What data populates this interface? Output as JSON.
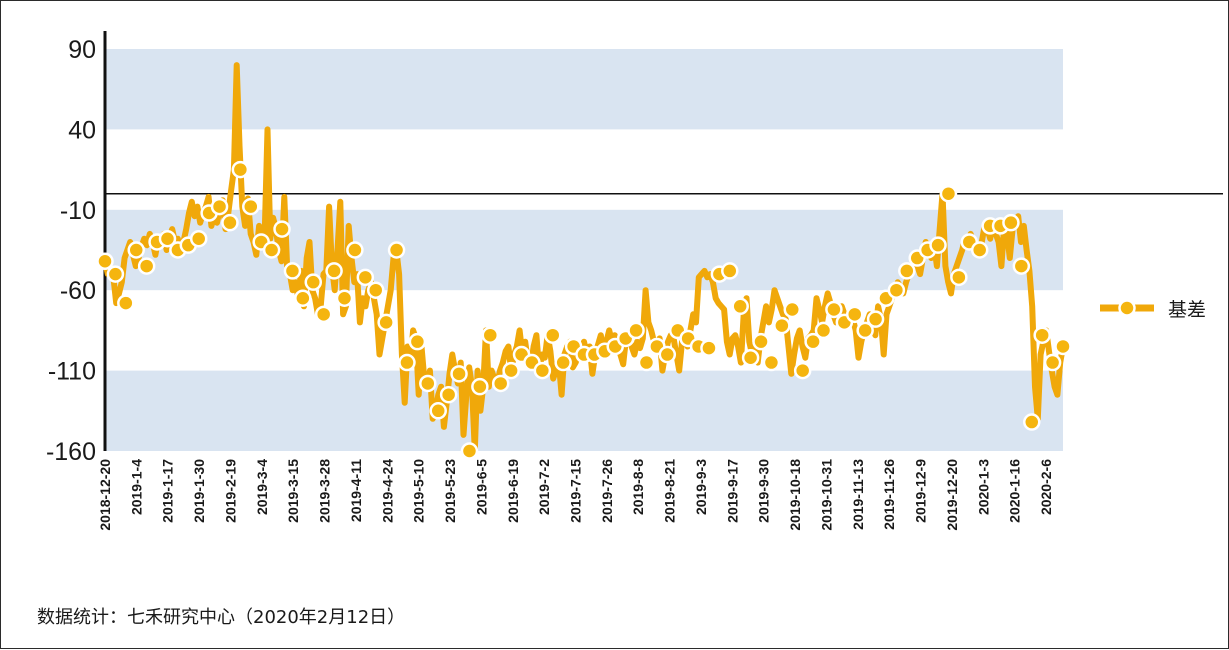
{
  "source_note": "数据统计：七禾研究中心（2020年2月12日）",
  "chart_data": {
    "type": "line",
    "title": "",
    "xlabel": "",
    "ylabel": "",
    "ylim": [
      -160,
      90
    ],
    "yticks": [
      90,
      40,
      -10,
      -60,
      -110,
      -160
    ],
    "y_tick_labels": [
      "90",
      "40",
      "-10",
      "-60",
      "-110",
      "-160"
    ],
    "reference_line": 0,
    "grid": "alternating horizontal bands",
    "legend_position": "right",
    "x_tick_labels": [
      "2018-12-20",
      "2019-1-4",
      "2019-1-17",
      "2019-1-30",
      "2019-2-19",
      "2019-3-4",
      "2019-3-15",
      "2019-3-28",
      "2019-4-11",
      "2019-4-24",
      "2019-5-10",
      "2019-5-23",
      "2019-6-5",
      "2019-6-19",
      "2019-7-2",
      "2019-7-15",
      "2019-7-26",
      "2019-8-8",
      "2019-8-21",
      "2019-9-3",
      "2019-9-17",
      "2019-9-30",
      "2019-10-18",
      "2019-10-31",
      "2019-11-13",
      "2019-11-26",
      "2019-12-9",
      "2019-12-20",
      "2020-1-3",
      "2020-1-16",
      "2020-2-6"
    ],
    "colors": {
      "series": "#f0a80a",
      "marker_fill": "#f5b50f",
      "marker_stroke": "#ffffff",
      "band": "#d9e4f1",
      "axis": "#111111"
    },
    "series": [
      {
        "name": "基差",
        "values": [
          -42,
          -50,
          -48,
          -52,
          -68,
          -62,
          -55,
          -40,
          -35,
          -30,
          -38,
          -45,
          -40,
          -33,
          -28,
          -32,
          -25,
          -30,
          -38,
          -28,
          -32,
          -25,
          -35,
          -27,
          -22,
          -30,
          -28,
          -35,
          -30,
          -22,
          -12,
          -5,
          -14,
          -8,
          -18,
          -12,
          -8,
          -2,
          -20,
          -14,
          -18,
          -10,
          -4,
          -22,
          -12,
          2,
          15,
          80,
          30,
          -8,
          -20,
          -3,
          -25,
          -30,
          -38,
          -20,
          -30,
          -25,
          40,
          -28,
          -15,
          -22,
          -35,
          -42,
          -2,
          -45,
          -50,
          -60,
          -55,
          -65,
          -48,
          -70,
          -40,
          -30,
          -60,
          -65,
          -75,
          -70,
          -50,
          -48,
          -8,
          -45,
          -60,
          -35,
          -5,
          -75,
          -70,
          -20,
          -40,
          -55,
          -50,
          -80,
          -65,
          -70,
          -60,
          -55,
          -65,
          -75,
          -100,
          -90,
          -80,
          -70,
          -60,
          -40,
          -35,
          -50,
          -100,
          -130,
          -95,
          -105,
          -85,
          -90,
          -125,
          -95,
          -115,
          -120,
          -110,
          -140,
          -135,
          -125,
          -120,
          -145,
          -130,
          -112,
          -100,
          -110,
          -118,
          -105,
          -150,
          -125,
          -108,
          -120,
          -160,
          -110,
          -135,
          -120,
          -85,
          -120,
          -110,
          -115,
          -118,
          -110,
          -105,
          -98,
          -95,
          -110,
          -100,
          -95,
          -85,
          -100,
          -92,
          -105,
          -108,
          -95,
          -88,
          -110,
          -100,
          -102,
          -88,
          -98,
          -115,
          -110,
          -105,
          -125,
          -100,
          -95,
          -92,
          -108,
          -105,
          -100,
          -98,
          -92,
          -100,
          -95,
          -112,
          -100,
          -94,
          -88,
          -98,
          -92,
          -85,
          -92,
          -88,
          -95,
          -100,
          -106,
          -90,
          -88,
          -95,
          -100,
          -92,
          -96,
          -90,
          -60,
          -80,
          -85,
          -92,
          -94,
          -90,
          -110,
          -100,
          -92,
          -88,
          -90,
          -100,
          -110,
          -92,
          -88,
          -95,
          -85,
          -75,
          -80,
          -52,
          -50,
          -48,
          -52,
          -50,
          -55,
          -65,
          -68,
          -70,
          -72,
          -92,
          -100,
          -90,
          -88,
          -95,
          -105,
          -75,
          -65,
          -92,
          -100,
          -95,
          -105,
          -90,
          -80,
          -70,
          -80,
          -72,
          -60,
          -65,
          -70,
          -75,
          -78,
          -95,
          -112,
          -100,
          -90,
          -85,
          -95,
          -102,
          -90,
          -88,
          -85,
          -65,
          -72,
          -80,
          -70,
          -62,
          -68,
          -75,
          -80,
          -72,
          -70,
          -75,
          -75,
          -80,
          -78,
          -85,
          -102,
          -92,
          -85,
          -80,
          -75,
          -82,
          -88,
          -70,
          -78,
          -100,
          -75,
          -70,
          -65,
          -60,
          -55,
          -58,
          -62,
          -55,
          -50,
          -45,
          -40,
          -45,
          -50,
          -40,
          -30,
          -35,
          -40,
          -32,
          -45,
          -22,
          0,
          -45,
          -55,
          -62,
          -50,
          -45,
          -40,
          -35,
          -28,
          -32,
          -25,
          -30,
          -35,
          -38,
          -30,
          -20,
          -22,
          -28,
          -18,
          -25,
          -30,
          -45,
          -20,
          -25,
          -40,
          -22,
          -16,
          -14,
          -30,
          -20,
          -35,
          -48,
          -70,
          -120,
          -140,
          -100,
          -92,
          -85,
          -98,
          -110,
          -120,
          -125,
          -105,
          -95
        ]
      }
    ],
    "markers": [
      -42,
      -50,
      -68,
      -35,
      -45,
      -30,
      -28,
      -35,
      -32,
      -28,
      -12,
      -8,
      -18,
      15,
      -8,
      -30,
      -35,
      -22,
      -48,
      -65,
      -55,
      -75,
      -48,
      -65,
      -35,
      -52,
      -60,
      -80,
      -35,
      -105,
      -92,
      -118,
      -135,
      -125,
      -112,
      -160,
      -120,
      -88,
      -118,
      -110,
      -100,
      -105,
      -110,
      -88,
      -105,
      -95,
      -100,
      -100,
      -98,
      -95,
      -90,
      -85,
      -105,
      -95,
      -100,
      -85,
      -90,
      -95,
      -96,
      -50,
      -48,
      -70,
      -102,
      -92,
      -105,
      -82,
      -72,
      -110,
      -92,
      -85,
      -72,
      -80,
      -75,
      -85,
      -78,
      -65,
      -60,
      -48,
      -40,
      -35,
      -32,
      0,
      -52,
      -30,
      -35,
      -20,
      -20,
      -18,
      -45,
      -142,
      -88,
      -105,
      -95
    ]
  }
}
